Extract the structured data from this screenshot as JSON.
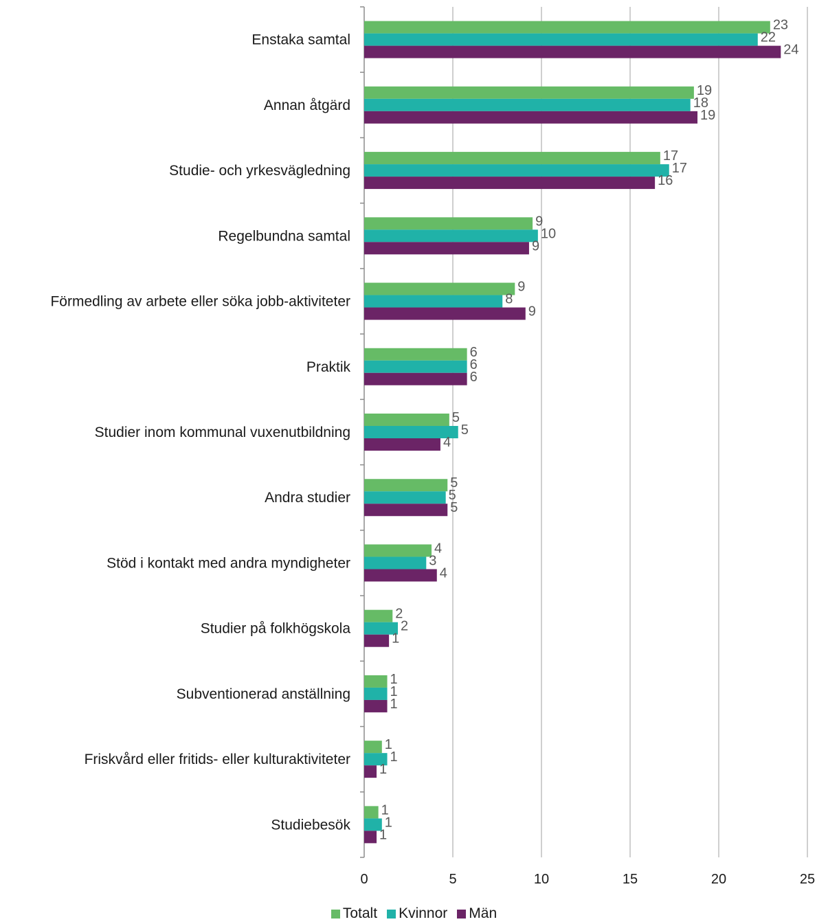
{
  "chart_data": {
    "type": "bar",
    "orientation": "horizontal",
    "categories": [
      "Enstaka samtal",
      "Annan åtgärd",
      "Studie- och yrkesvägledning",
      "Regelbundna samtal",
      "Förmedling av arbete eller söka jobb-aktiviteter",
      "Praktik",
      "Studier inom kommunal vuxenutbildning",
      "Andra studier",
      "Stöd i kontakt med andra myndigheter",
      "Studier på folkhögskola",
      "Subventionerad anställning",
      "Friskvård eller fritids- eller kulturaktiviteter",
      "Studiebesök"
    ],
    "series": [
      {
        "name": "Totalt",
        "color": "#66bb66",
        "values": [
          22.9,
          18.6,
          16.7,
          9.5,
          8.5,
          5.8,
          4.8,
          4.7,
          3.8,
          1.6,
          1.3,
          1.0,
          0.8
        ],
        "labels": [
          "23",
          "19",
          "17",
          "9",
          "9",
          "6",
          "5",
          "5",
          "4",
          "2",
          "1",
          "1",
          "1"
        ]
      },
      {
        "name": "Kvinnor",
        "color": "#20b2a8",
        "values": [
          22.2,
          18.4,
          17.2,
          9.8,
          7.8,
          5.8,
          5.3,
          4.6,
          3.5,
          1.9,
          1.3,
          1.3,
          1.0
        ],
        "labels": [
          "22",
          "18",
          "17",
          "10",
          "8",
          "6",
          "5",
          "5",
          "3",
          "2",
          "1",
          "1",
          "1"
        ]
      },
      {
        "name": "Män",
        "color": "#6b2466",
        "values": [
          23.5,
          18.8,
          16.4,
          9.3,
          9.1,
          5.8,
          4.3,
          4.7,
          4.1,
          1.4,
          1.3,
          0.7,
          0.7
        ],
        "labels": [
          "24",
          "19",
          "16",
          "9",
          "9",
          "6",
          "4",
          "5",
          "4",
          "1",
          "1",
          "1",
          "1"
        ]
      }
    ],
    "xlim": [
      0,
      25
    ],
    "xticks": [
      "0",
      "5",
      "10",
      "15",
      "20",
      "25"
    ],
    "grid": "vertical",
    "legend": "bottom",
    "title": "",
    "xlabel": "",
    "ylabel": ""
  }
}
